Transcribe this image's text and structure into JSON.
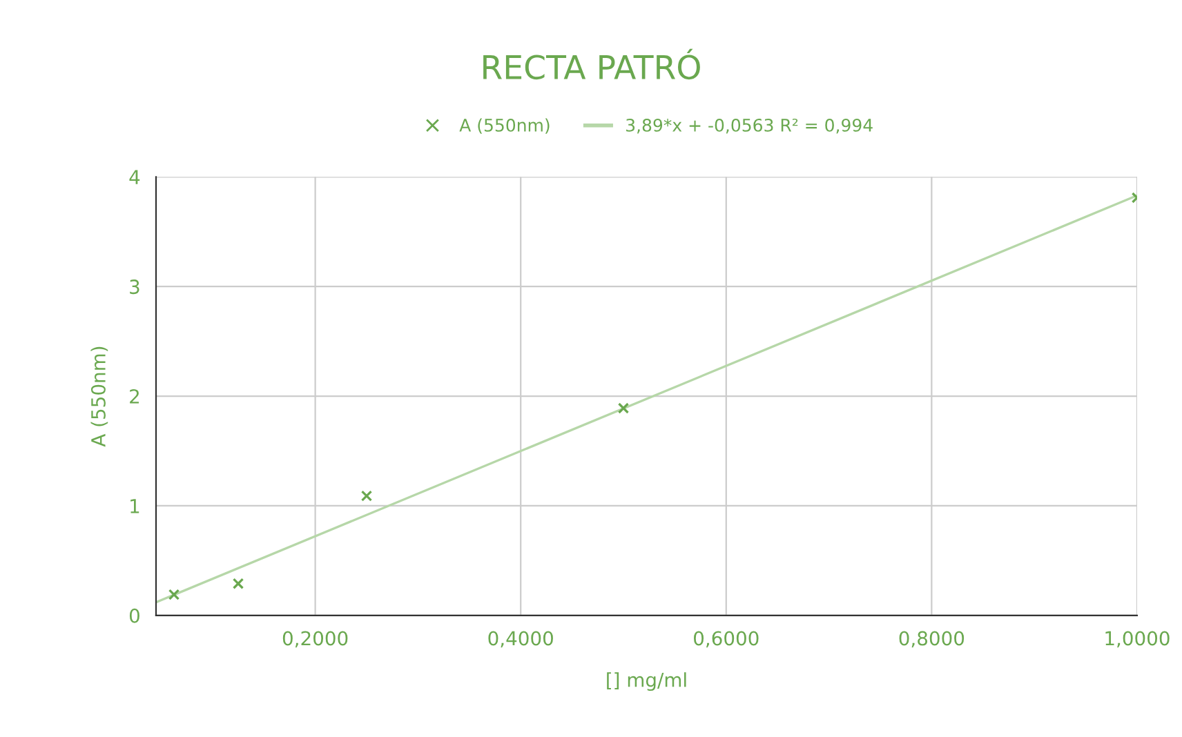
{
  "chart_data": {
    "type": "scatter",
    "title": "RECTA PATRÓ",
    "xlabel": "[] mg/ml",
    "ylabel": "A (550nm)",
    "series": [
      {
        "name": "A (550nm)",
        "marker": "cross",
        "color": "#6aa84f",
        "x": [
          0.0625,
          0.125,
          0.25,
          0.5,
          1.0
        ],
        "values": [
          0.19,
          0.29,
          1.09,
          1.89,
          3.81
        ]
      },
      {
        "name": "3,89*x + -0,0563 R² = 0,994",
        "type": "line",
        "marker": "none",
        "color": "#b6d7a8",
        "x": [
          0.045,
          1.0
        ],
        "values": [
          0.12,
          3.83
        ]
      }
    ],
    "xlim": [
      0.045,
      1.0
    ],
    "ylim": [
      0,
      4
    ],
    "xticks": [
      {
        "value": 0.2,
        "label": "0,2000"
      },
      {
        "value": 0.4,
        "label": "0,4000"
      },
      {
        "value": 0.6,
        "label": "0,6000"
      },
      {
        "value": 0.8,
        "label": "0,8000"
      },
      {
        "value": 1.0,
        "label": "1,0000"
      }
    ],
    "yticks": [
      0,
      1,
      2,
      3,
      4
    ],
    "grid": true,
    "legend": "top"
  }
}
